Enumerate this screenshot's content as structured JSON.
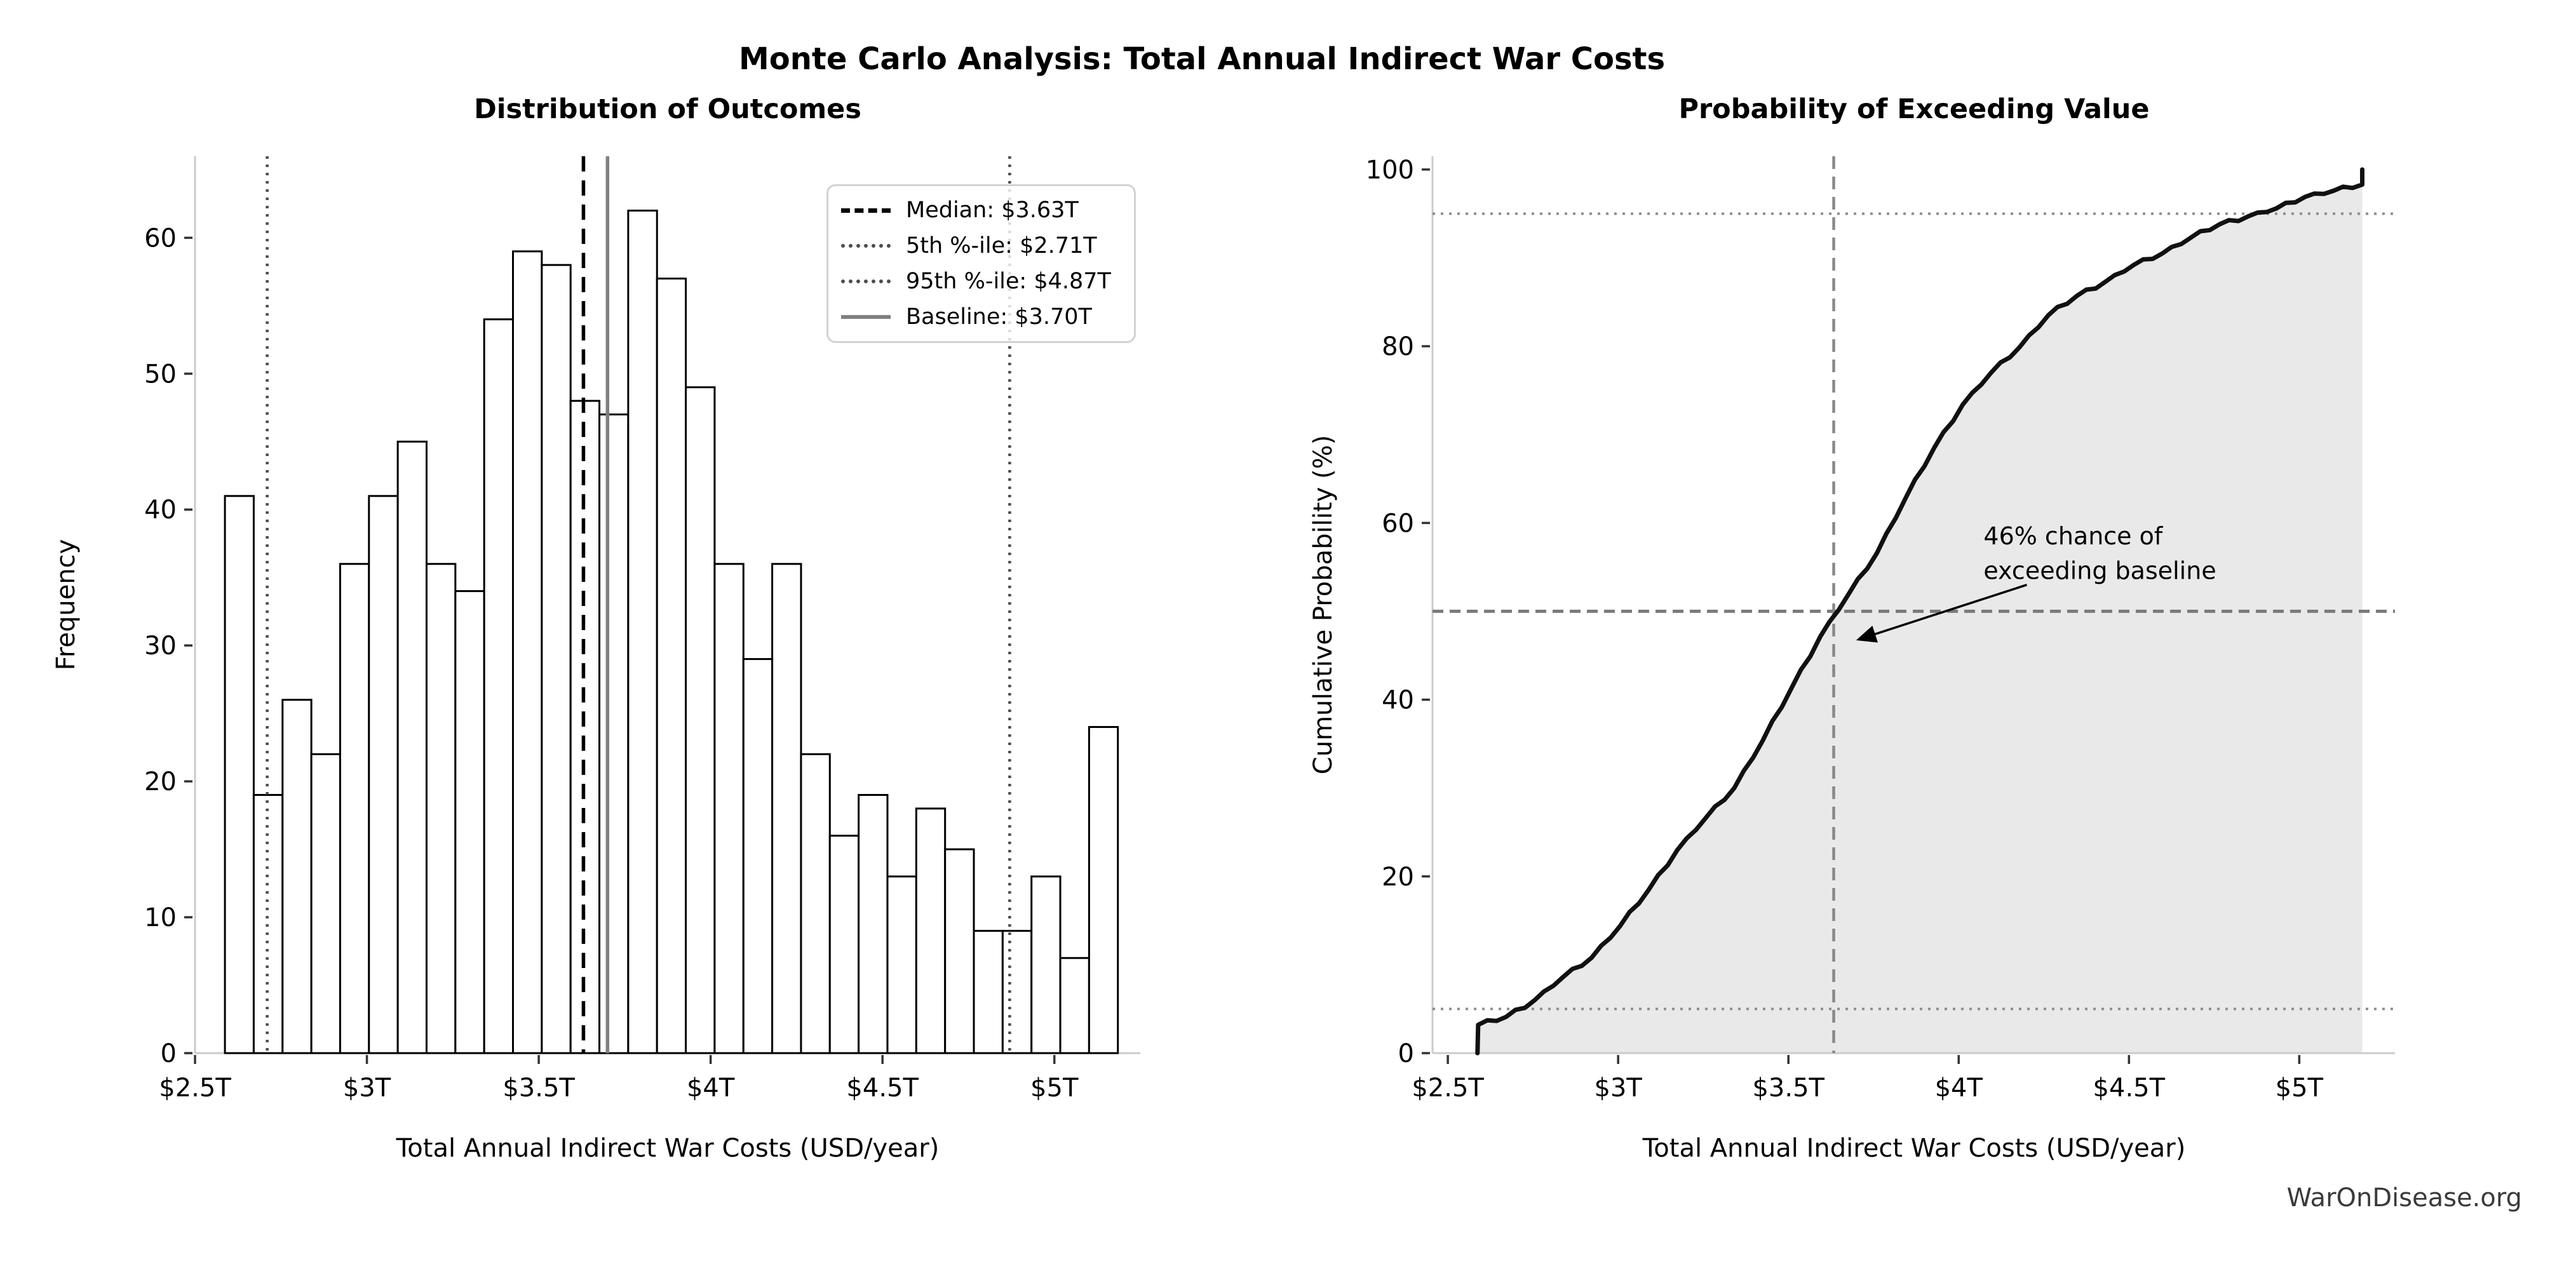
{
  "figure": {
    "title": "Monte Carlo Analysis: Total Annual Indirect War Costs",
    "watermark": "WarOnDisease.org",
    "background": "#ffffff",
    "sample_count": 1000
  },
  "legend": {
    "items": [
      {
        "label": "Median: $3.63T",
        "style": "dashed",
        "color": "#000000"
      },
      {
        "label": "5th %-ile: $2.71T",
        "style": "dotted",
        "color": "#4d4d4d"
      },
      {
        "label": "95th %-ile: $4.87T",
        "style": "dotted",
        "color": "#4d4d4d"
      },
      {
        "label": "Baseline: $3.70T",
        "style": "solid",
        "color": "#808080"
      }
    ]
  },
  "chart_data": [
    {
      "type": "bar",
      "subtype": "histogram",
      "title": "Distribution of Outcomes",
      "xlabel": "Total Annual Indirect War Costs (USD/year)",
      "ylabel": "Frequency",
      "xlim": [
        2.5,
        5.25
      ],
      "ylim": [
        0,
        66
      ],
      "grid": false,
      "bar_fill": "#ffffff",
      "bar_edge": "#000000",
      "bin_start": 2.587,
      "bin_width": 0.0838,
      "frequencies": [
        41,
        19,
        26,
        22,
        36,
        41,
        45,
        36,
        34,
        54,
        59,
        58,
        48,
        47,
        62,
        57,
        49,
        36,
        29,
        36,
        22,
        16,
        19,
        13,
        18,
        15,
        9,
        9,
        13,
        7,
        24
      ],
      "x_ticks": [
        {
          "value": 2.5,
          "label": "$2.5T"
        },
        {
          "value": 3.0,
          "label": "$3T"
        },
        {
          "value": 3.5,
          "label": "$3.5T"
        },
        {
          "value": 4.0,
          "label": "$4T"
        },
        {
          "value": 4.5,
          "label": "$4.5T"
        },
        {
          "value": 5.0,
          "label": "$5T"
        }
      ],
      "y_ticks": [
        0,
        10,
        20,
        30,
        40,
        50,
        60
      ],
      "ref_lines": [
        {
          "role": "p5",
          "orientation": "v",
          "value": 2.71,
          "style": "dotted",
          "color": "#4d4d4d",
          "label": "5th %-ile: $2.71T"
        },
        {
          "role": "median",
          "orientation": "v",
          "value": 3.63,
          "style": "dashed",
          "color": "#000000",
          "label": "Median: $3.63T"
        },
        {
          "role": "baseline",
          "orientation": "v",
          "value": 3.7,
          "style": "solid",
          "color": "#808080",
          "label": "Baseline: $3.70T"
        },
        {
          "role": "p95",
          "orientation": "v",
          "value": 4.87,
          "style": "dotted",
          "color": "#4d4d4d",
          "label": "95th %-ile: $4.87T"
        }
      ],
      "legend_position": "upper right"
    },
    {
      "type": "line",
      "subtype": "cdf",
      "title": "Probability of Exceeding Value",
      "xlabel": "Total Annual Indirect War Costs (USD/year)",
      "ylabel": "Cumulative Probability (%)",
      "xlim": [
        2.455,
        5.281
      ],
      "ylim": [
        0,
        101.5
      ],
      "grid": false,
      "line_color": "#111111",
      "shade_color": "#e9e9e9",
      "x_ticks": [
        {
          "value": 2.5,
          "label": "$2.5T"
        },
        {
          "value": 3.0,
          "label": "$3T"
        },
        {
          "value": 3.5,
          "label": "$3.5T"
        },
        {
          "value": 4.0,
          "label": "$4T"
        },
        {
          "value": 4.5,
          "label": "$4.5T"
        },
        {
          "value": 5.0,
          "label": "$5T"
        }
      ],
      "y_ticks": [
        0,
        20,
        40,
        60,
        80,
        100
      ],
      "curve": [
        [
          2.587,
          0
        ],
        [
          2.589,
          3.2
        ],
        [
          2.671,
          4.1
        ],
        [
          2.755,
          6.0
        ],
        [
          2.838,
          8.6
        ],
        [
          2.922,
          10.8
        ],
        [
          3.006,
          14.4
        ],
        [
          3.09,
          18.5
        ],
        [
          3.174,
          23.0
        ],
        [
          3.257,
          26.6
        ],
        [
          3.341,
          30.0
        ],
        [
          3.425,
          35.4
        ],
        [
          3.509,
          41.3
        ],
        [
          3.593,
          47.1
        ],
        [
          3.676,
          51.9
        ],
        [
          3.76,
          56.6
        ],
        [
          3.844,
          62.8
        ],
        [
          3.928,
          68.5
        ],
        [
          4.012,
          73.4
        ],
        [
          4.095,
          77.0
        ],
        [
          4.179,
          79.9
        ],
        [
          4.263,
          83.5
        ],
        [
          4.347,
          85.7
        ],
        [
          4.431,
          87.3
        ],
        [
          4.514,
          89.2
        ],
        [
          4.598,
          90.5
        ],
        [
          4.682,
          92.3
        ],
        [
          4.766,
          93.8
        ],
        [
          4.85,
          94.7
        ],
        [
          4.933,
          95.6
        ],
        [
          5.017,
          96.9
        ],
        [
          5.101,
          97.6
        ],
        [
          5.185,
          98.3
        ],
        [
          5.185,
          100
        ]
      ],
      "ref_lines": [
        {
          "role": "h95",
          "orientation": "h",
          "value": 95,
          "style": "dotted",
          "color": "#8c8c8c"
        },
        {
          "role": "h50",
          "orientation": "h",
          "value": 50,
          "style": "dashed",
          "color": "#7a7a7a"
        },
        {
          "role": "h5",
          "orientation": "h",
          "value": 5,
          "style": "dotted",
          "color": "#8c8c8c"
        },
        {
          "role": "vmedian",
          "orientation": "v",
          "value": 3.633,
          "style": "dashed",
          "color": "#888888"
        }
      ],
      "annotation": {
        "lines": [
          "46% chance of",
          "exceeding baseline"
        ],
        "text_x": 4.073,
        "line_y": [
          58.5,
          54.6
        ],
        "arrow_from": [
          4.2,
          53.0
        ],
        "arrow_to": [
          3.705,
          46.8
        ],
        "color": "#000000"
      }
    }
  ]
}
